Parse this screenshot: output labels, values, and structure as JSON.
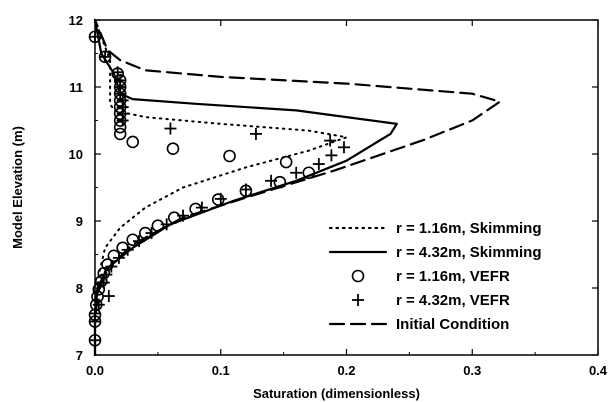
{
  "chart_data": {
    "type": "scatter",
    "title": "",
    "xlabel": "Saturation (dimensionless)",
    "ylabel": "Model Elevation (m)",
    "xlim": [
      0.0,
      0.4
    ],
    "ylim": [
      7,
      12
    ],
    "xticks": [
      "0.0",
      "0.1",
      "0.2",
      "0.3",
      "0.4"
    ],
    "yticks": [
      "7",
      "8",
      "9",
      "10",
      "11",
      "12"
    ],
    "grid": false,
    "legend_position": "bottom-right",
    "series": [
      {
        "name": "r = 1.16m, Skimming",
        "style": "dotted",
        "points": [
          [
            0.0,
            7.0
          ],
          [
            0.0,
            7.6
          ],
          [
            0.003,
            8.2
          ],
          [
            0.008,
            8.6
          ],
          [
            0.02,
            8.9
          ],
          [
            0.04,
            9.2
          ],
          [
            0.07,
            9.5
          ],
          [
            0.12,
            9.8
          ],
          [
            0.17,
            10.05
          ],
          [
            0.2,
            10.25
          ],
          [
            0.17,
            10.35
          ],
          [
            0.1,
            10.45
          ],
          [
            0.04,
            10.55
          ],
          [
            0.015,
            10.65
          ],
          [
            0.012,
            10.75
          ],
          [
            0.012,
            11.1
          ],
          [
            0.012,
            11.4
          ],
          [
            0.0,
            12.0
          ]
        ]
      },
      {
        "name": "r = 4.32m, Skimming",
        "style": "solid",
        "points": [
          [
            0.0,
            7.0
          ],
          [
            0.0,
            7.6
          ],
          [
            0.002,
            8.0
          ],
          [
            0.01,
            8.3
          ],
          [
            0.03,
            8.6
          ],
          [
            0.06,
            8.95
          ],
          [
            0.11,
            9.3
          ],
          [
            0.16,
            9.6
          ],
          [
            0.2,
            9.9
          ],
          [
            0.235,
            10.3
          ],
          [
            0.24,
            10.45
          ],
          [
            0.16,
            10.65
          ],
          [
            0.08,
            10.75
          ],
          [
            0.03,
            10.82
          ],
          [
            0.02,
            10.9
          ],
          [
            0.015,
            11.2
          ],
          [
            0.005,
            11.5
          ],
          [
            0.0,
            12.0
          ]
        ]
      },
      {
        "name": "r = 1.16m, VEFR",
        "style": "circle",
        "points": [
          [
            0.0,
            11.75
          ],
          [
            0.008,
            11.45
          ],
          [
            0.018,
            11.2
          ],
          [
            0.02,
            11.1
          ],
          [
            0.02,
            11.0
          ],
          [
            0.02,
            10.9
          ],
          [
            0.02,
            10.8
          ],
          [
            0.02,
            10.7
          ],
          [
            0.02,
            10.6
          ],
          [
            0.02,
            10.5
          ],
          [
            0.02,
            10.4
          ],
          [
            0.02,
            10.3
          ],
          [
            0.03,
            10.18
          ],
          [
            0.062,
            10.08
          ],
          [
            0.107,
            9.97
          ],
          [
            0.152,
            9.88
          ],
          [
            0.17,
            9.72
          ],
          [
            0.147,
            9.58
          ],
          [
            0.12,
            9.45
          ],
          [
            0.098,
            9.32
          ],
          [
            0.08,
            9.18
          ],
          [
            0.063,
            9.05
          ],
          [
            0.05,
            8.93
          ],
          [
            0.04,
            8.82
          ],
          [
            0.03,
            8.72
          ],
          [
            0.022,
            8.6
          ],
          [
            0.015,
            8.48
          ],
          [
            0.01,
            8.35
          ],
          [
            0.007,
            8.22
          ],
          [
            0.005,
            8.1
          ],
          [
            0.003,
            7.98
          ],
          [
            0.002,
            7.87
          ],
          [
            0.001,
            7.75
          ],
          [
            0.0,
            7.6
          ],
          [
            0.0,
            7.5
          ],
          [
            0.0,
            7.22
          ]
        ]
      },
      {
        "name": "r = 4.32m, VEFR",
        "style": "plus",
        "points": [
          [
            0.0,
            11.75
          ],
          [
            0.008,
            11.45
          ],
          [
            0.018,
            11.22
          ],
          [
            0.02,
            11.1
          ],
          [
            0.02,
            11.0
          ],
          [
            0.02,
            10.9
          ],
          [
            0.022,
            10.8
          ],
          [
            0.022,
            10.7
          ],
          [
            0.022,
            10.6
          ],
          [
            0.022,
            10.5
          ],
          [
            0.06,
            10.38
          ],
          [
            0.128,
            10.3
          ],
          [
            0.187,
            10.2
          ],
          [
            0.198,
            10.1
          ],
          [
            0.188,
            9.98
          ],
          [
            0.178,
            9.85
          ],
          [
            0.16,
            9.72
          ],
          [
            0.14,
            9.6
          ],
          [
            0.12,
            9.47
          ],
          [
            0.1,
            9.33
          ],
          [
            0.085,
            9.2
          ],
          [
            0.07,
            9.08
          ],
          [
            0.057,
            8.95
          ],
          [
            0.045,
            8.82
          ],
          [
            0.035,
            8.7
          ],
          [
            0.026,
            8.57
          ],
          [
            0.019,
            8.45
          ],
          [
            0.013,
            8.32
          ],
          [
            0.009,
            8.2
          ],
          [
            0.007,
            8.08
          ],
          [
            0.011,
            7.88
          ],
          [
            0.003,
            7.75
          ],
          [
            0.0,
            7.62
          ],
          [
            0.0,
            7.5
          ],
          [
            0.0,
            7.22
          ]
        ]
      },
      {
        "name": "Initial Condition",
        "style": "dashed",
        "points": [
          [
            0.0,
            7.0
          ],
          [
            0.0,
            7.5
          ],
          [
            0.002,
            7.9
          ],
          [
            0.008,
            8.25
          ],
          [
            0.03,
            8.65
          ],
          [
            0.07,
            9.05
          ],
          [
            0.12,
            9.35
          ],
          [
            0.19,
            9.75
          ],
          [
            0.26,
            10.2
          ],
          [
            0.3,
            10.5
          ],
          [
            0.322,
            10.78
          ],
          [
            0.3,
            10.9
          ],
          [
            0.2,
            11.05
          ],
          [
            0.1,
            11.15
          ],
          [
            0.04,
            11.25
          ],
          [
            0.02,
            11.4
          ],
          [
            0.01,
            11.55
          ],
          [
            0.0,
            12.0
          ]
        ]
      }
    ]
  }
}
